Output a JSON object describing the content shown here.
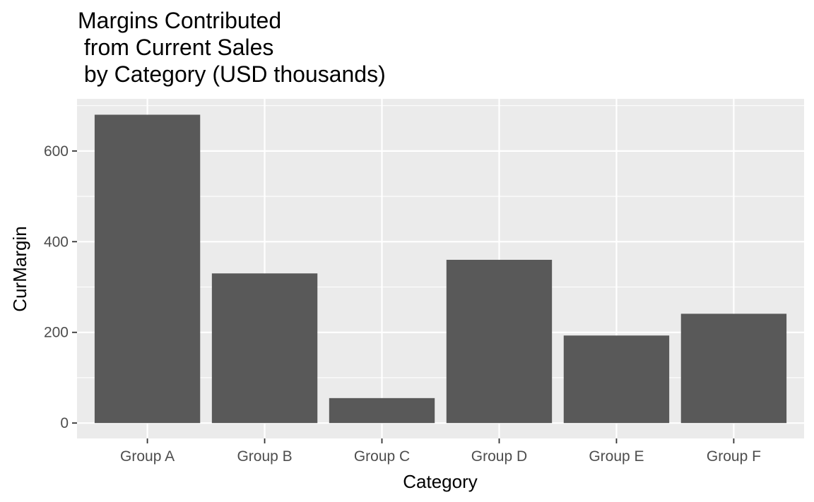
{
  "chart_data": {
    "type": "bar",
    "title_lines": [
      "Margins Contributed",
      " from Current Sales",
      " by Category (USD thousands)"
    ],
    "xlabel": "Category",
    "ylabel": "CurMargin",
    "categories": [
      "Group A",
      "Group B",
      "Group C",
      "Group D",
      "Group E",
      "Group F"
    ],
    "values": [
      680,
      330,
      55,
      360,
      193,
      241
    ],
    "ylim": [
      -34,
      715
    ],
    "y_ticks": [
      0,
      200,
      400,
      600
    ],
    "y_minor_ticks": [
      100,
      300,
      500,
      700
    ],
    "grid": true,
    "colors": {
      "panel": "#ebebeb",
      "grid": "#ffffff",
      "bar": "#595959",
      "tick_mark": "#333333"
    }
  }
}
